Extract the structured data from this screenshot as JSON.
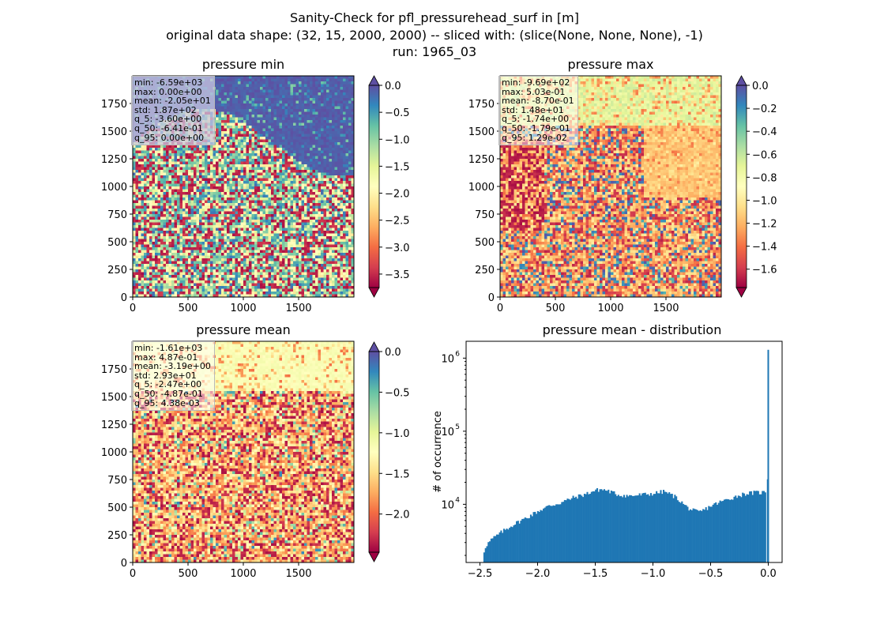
{
  "figure": {
    "suptitle_lines": [
      "Sanity-Check for pfl_pressurehead_surf in [m]",
      "original data shape: (32, 15, 2000, 2000) -- sliced with: (slice(None, None, None), -1)",
      "run: 1965_03"
    ]
  },
  "chart_data": [
    {
      "type": "heatmap",
      "title": "pressure min",
      "xlim": [
        0,
        2000
      ],
      "ylim": [
        0,
        2000
      ],
      "xticks": [
        0,
        500,
        1000,
        1500
      ],
      "yticks": [
        0,
        250,
        500,
        750,
        1000,
        1250,
        1500,
        1750
      ],
      "colormap": "Spectral",
      "colorbar": {
        "range": [
          -3.75,
          0.0
        ],
        "ticks": [
          0.0,
          -0.5,
          -1.0,
          -1.5,
          -2.0,
          -2.5,
          -3.0,
          -3.5
        ],
        "extend": "both"
      },
      "stats": [
        "min: -6.59e+03",
        "max: 0.00e+00",
        "mean: -2.05e+01",
        "std: 1.87e+02",
        "q_5: -3.60e+00",
        "q_50: -6.41e-01",
        "q_95: 0.00e+00"
      ]
    },
    {
      "type": "heatmap",
      "title": "pressure max",
      "xlim": [
        0,
        2000
      ],
      "ylim": [
        0,
        2000
      ],
      "xticks": [
        0,
        500,
        1000,
        1500
      ],
      "yticks": [
        0,
        250,
        500,
        750,
        1000,
        1250,
        1500,
        1750
      ],
      "colormap": "Spectral",
      "colorbar": {
        "range": [
          -1.76,
          0.0
        ],
        "ticks": [
          0.0,
          -0.2,
          -0.4,
          -0.6,
          -0.8,
          -1.0,
          -1.2,
          -1.4,
          -1.6
        ],
        "extend": "both"
      },
      "stats": [
        "min: -9.69e+02",
        "max: 5.03e-01",
        "mean: -8.70e-01",
        "std: 1.48e+01",
        "q_5: -1.74e+00",
        "q_50: -1.79e-01",
        "q_95: 1.29e-02"
      ]
    },
    {
      "type": "heatmap",
      "title": "pressure mean",
      "xlim": [
        0,
        2000
      ],
      "ylim": [
        0,
        2000
      ],
      "xticks": [
        0,
        500,
        1000,
        1500
      ],
      "yticks": [
        0,
        250,
        500,
        750,
        1000,
        1250,
        1500,
        1750
      ],
      "colormap": "Spectral",
      "colorbar": {
        "range": [
          -2.47,
          0.0
        ],
        "ticks": [
          0.0,
          -0.5,
          -1.0,
          -1.5,
          -2.0
        ],
        "extend": "both"
      },
      "stats": [
        "min: -1.61e+03",
        "max: 4.87e-01",
        "mean: -3.19e+00",
        "std: 2.93e+01",
        "q_5: -2.47e+00",
        "q_50: -4.87e-01",
        "q_95: 4.38e-03"
      ]
    },
    {
      "type": "bar",
      "title": "pressure mean - distribution",
      "ylabel": "# of occurrence",
      "yscale": "log",
      "xlim": [
        -2.62,
        0.12
      ],
      "ylim": [
        1600,
        1700000
      ],
      "xticks": [
        -2.5,
        -2.0,
        -1.5,
        -1.0,
        -0.5,
        0.0
      ],
      "xticklabels": [
        "−2.5",
        "−2.0",
        "−1.5",
        "−1.0",
        "−0.5",
        "0.0"
      ],
      "yticks": [
        10000,
        100000,
        1000000
      ],
      "yticklabels": [
        "10",
        "10",
        "10"
      ],
      "ytick_exponents": [
        "4",
        "5",
        "6"
      ],
      "bar_color": "#1f77b4",
      "profile_x": [
        -2.47,
        -2.45,
        -2.4,
        -2.3,
        -2.2,
        -2.1,
        -2.0,
        -1.9,
        -1.8,
        -1.7,
        -1.6,
        -1.5,
        -1.45,
        -1.4,
        -1.3,
        -1.2,
        -1.1,
        -1.0,
        -0.9,
        -0.8,
        -0.7,
        -0.65,
        -0.6,
        -0.55,
        -0.5,
        -0.4,
        -0.3,
        -0.2,
        -0.1,
        -0.05,
        -0.02
      ],
      "profile_y": [
        2100,
        2700,
        3300,
        4300,
        5400,
        6500,
        8000,
        9500,
        10500,
        12200,
        13500,
        15500,
        16000,
        15500,
        13500,
        13000,
        13500,
        14000,
        15000,
        12500,
        9000,
        8200,
        7800,
        8500,
        9500,
        11000,
        12500,
        14000,
        14500,
        14500,
        15000
      ],
      "last_bins": [
        {
          "x": -0.005,
          "y": 22000
        },
        {
          "x": 0.0,
          "y": 1300000
        }
      ]
    }
  ]
}
